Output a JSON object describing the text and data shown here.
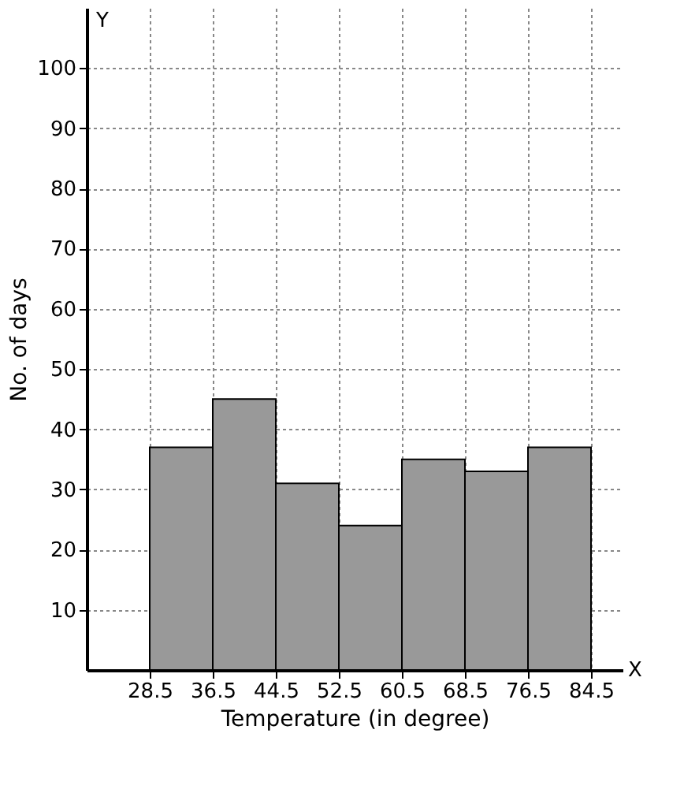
{
  "chart_data": {
    "type": "histogram",
    "xlabel": "Temperature (in degree)",
    "ylabel": "No. of days",
    "bins": [
      28.5,
      36.5,
      44.5,
      52.5,
      60.5,
      68.5,
      76.5,
      84.5
    ],
    "values": [
      37,
      45,
      31,
      24,
      35,
      33,
      37
    ],
    "color": "#999999",
    "xlim": [
      20.5,
      88.5
    ],
    "xticks": [
      28.5,
      36.5,
      44.5,
      52.5,
      60.5,
      68.5,
      76.5,
      84.5
    ],
    "ylim": [
      0,
      110
    ],
    "yticks": [
      10,
      20,
      30,
      40,
      50,
      60,
      70,
      80,
      90,
      100
    ],
    "grid": true,
    "annotations": [
      "Y",
      "X"
    ]
  }
}
